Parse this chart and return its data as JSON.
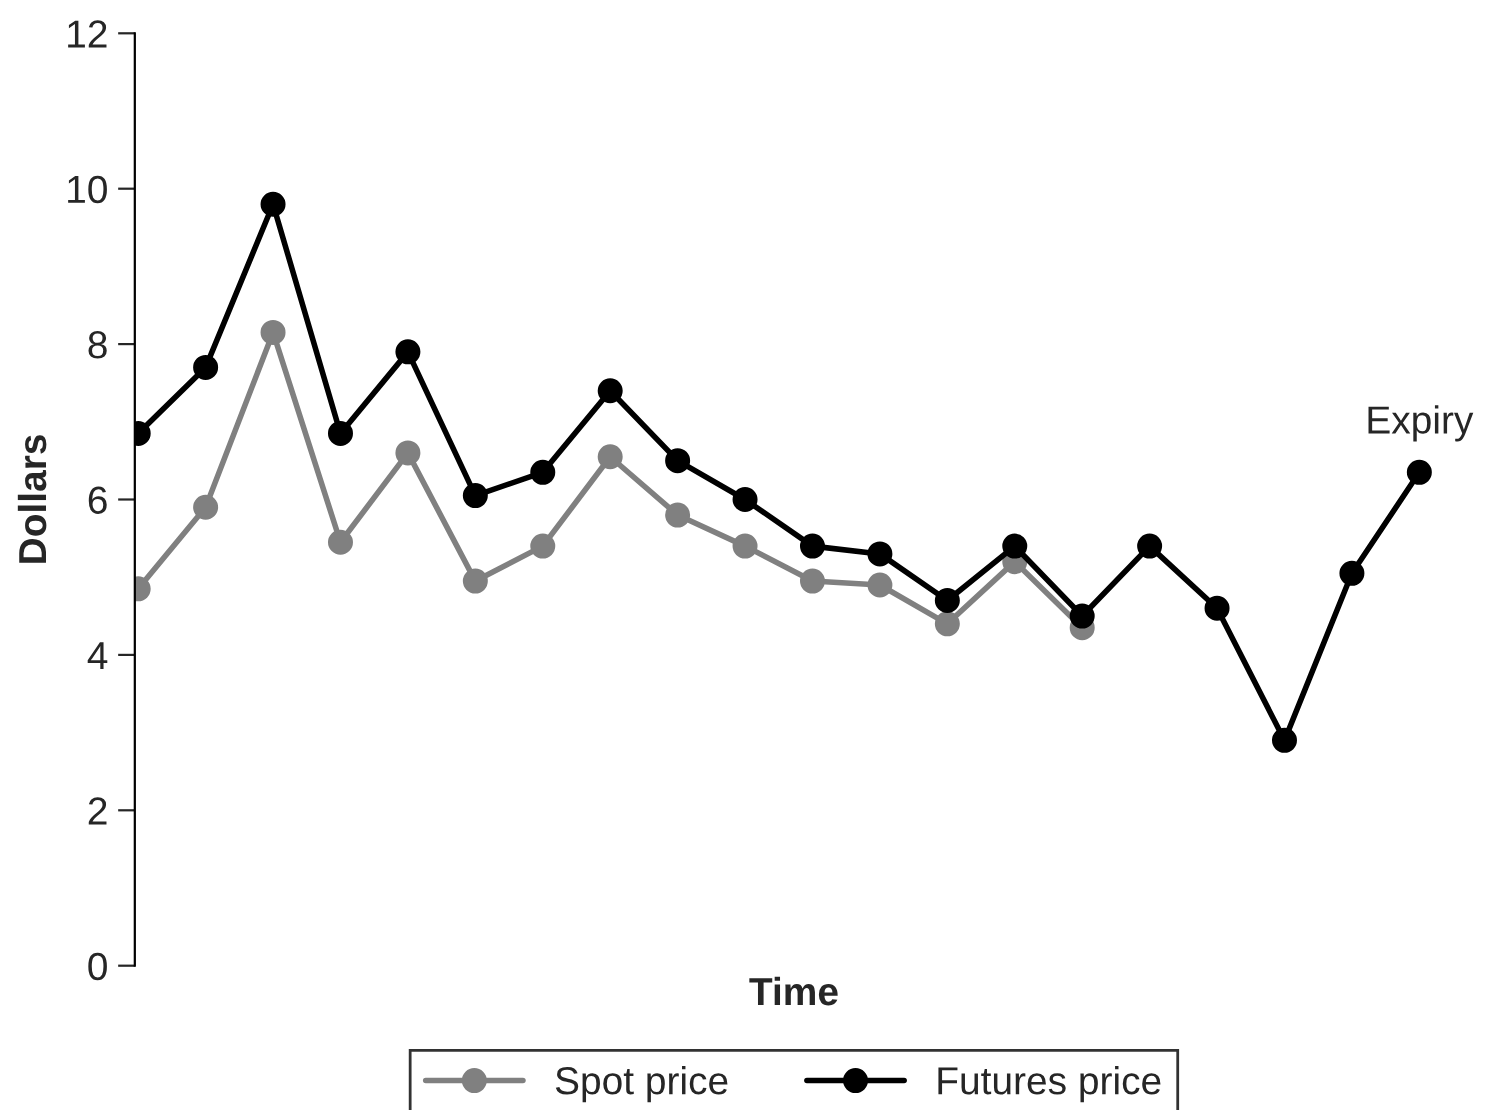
{
  "chart_data": {
    "type": "line",
    "xlabel": "Time",
    "ylabel": "Dollars",
    "categories": [
      null,
      null,
      null,
      null,
      null,
      null,
      null,
      null,
      null,
      null,
      null,
      null,
      null,
      null,
      null,
      null,
      null,
      null,
      null,
      null
    ],
    "series": [
      {
        "name": "Spot price",
        "color": "#808080",
        "values": [
          4.85,
          5.9,
          8.15,
          5.45,
          6.6,
          4.95,
          5.4,
          6.55,
          5.8,
          5.4,
          4.95,
          4.9,
          4.4,
          5.2,
          4.35,
          null,
          null,
          null,
          null,
          null
        ]
      },
      {
        "name": "Futures price",
        "color": "#000000",
        "values": [
          6.85,
          7.7,
          9.8,
          6.85,
          7.9,
          6.05,
          6.35,
          7.4,
          6.5,
          6.0,
          5.4,
          5.3,
          4.7,
          5.4,
          4.5,
          5.4,
          4.6,
          2.9,
          5.05,
          6.35
        ]
      }
    ],
    "ylim": [
      0,
      12
    ],
    "yticks": [
      0,
      2,
      4,
      6,
      8,
      10,
      12
    ],
    "annotations": [
      "Expiry"
    ],
    "marker": "circle",
    "line_style": "solid",
    "legend": "bottom",
    "grid": false,
    "tick_labels": "y"
  }
}
